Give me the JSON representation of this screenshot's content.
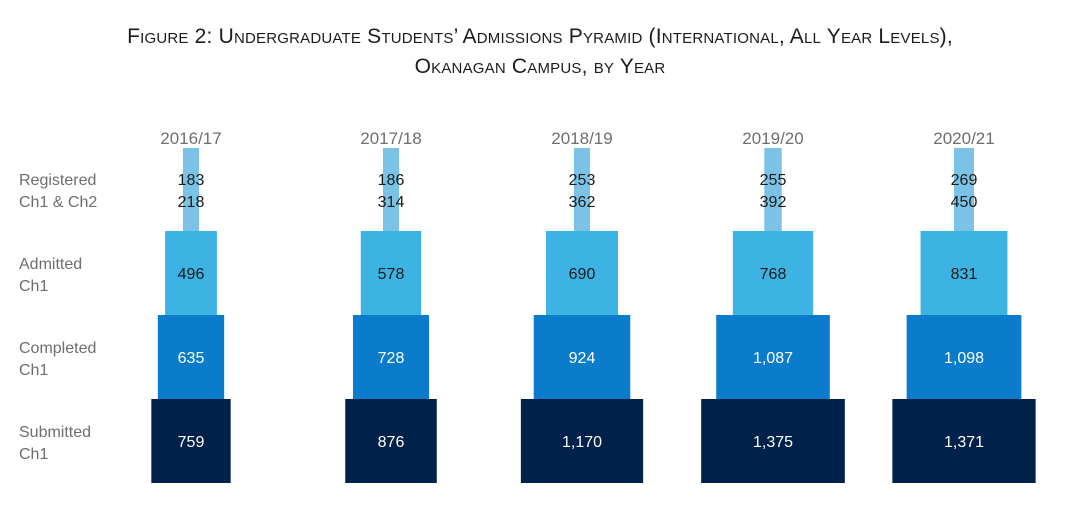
{
  "title": {
    "line1": "Figure 2: Undergraduate Students’ Admissions Pyramid (International, All Year Levels),",
    "line2": "Okanagan Campus, by Year"
  },
  "chart_data": {
    "type": "pyramid",
    "years": [
      "2016/17",
      "2017/18",
      "2018/19",
      "2019/20",
      "2020/21"
    ],
    "stages": [
      {
        "key": "registered",
        "label": [
          "Registered",
          "Ch1 & Ch2"
        ],
        "color": "#7bc3e6",
        "text_color": "#1a1a1a"
      },
      {
        "key": "admitted",
        "label": [
          "Admitted",
          "Ch1"
        ],
        "color": "#3db3e4",
        "text_color": "#1a1a1a"
      },
      {
        "key": "completed",
        "label": [
          "Completed",
          "Ch1"
        ],
        "color": "#0b7ccc",
        "text_color": "#ffffff"
      },
      {
        "key": "submitted",
        "label": [
          "Submitted",
          "Ch1"
        ],
        "color": "#00214a",
        "text_color": "#ffffff"
      }
    ],
    "values": {
      "registered_ch1": [
        183,
        186,
        253,
        255,
        269
      ],
      "registered_ch1_ch2": [
        218,
        314,
        362,
        392,
        450
      ],
      "admitted": [
        496,
        578,
        690,
        768,
        831
      ],
      "completed": [
        635,
        728,
        924,
        1087,
        1098
      ],
      "submitted": [
        759,
        876,
        1170,
        1375,
        1371
      ]
    },
    "display": {
      "registered_ch1": [
        "183",
        "186",
        "253",
        "255",
        "269"
      ],
      "registered_ch1_ch2": [
        "218",
        "314",
        "362",
        "392",
        "450"
      ],
      "admitted": [
        "496",
        "578",
        "690",
        "768",
        "831"
      ],
      "completed": [
        "635",
        "728",
        "924",
        "1,087",
        "1,098"
      ],
      "submitted": [
        "759",
        "876",
        "1,170",
        "1,375",
        "1,371"
      ]
    }
  }
}
